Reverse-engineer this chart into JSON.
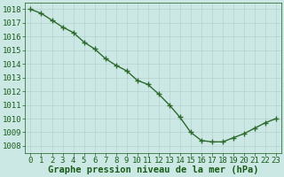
{
  "x": [
    0,
    1,
    2,
    3,
    4,
    5,
    6,
    7,
    8,
    9,
    10,
    11,
    12,
    13,
    14,
    15,
    16,
    17,
    18,
    19,
    20,
    21,
    22,
    23
  ],
  "y": [
    1018.0,
    1017.7,
    1017.2,
    1016.7,
    1016.3,
    1015.6,
    1015.1,
    1014.4,
    1013.9,
    1013.5,
    1012.8,
    1012.5,
    1011.8,
    1011.0,
    1010.1,
    1009.0,
    1008.4,
    1008.3,
    1008.3,
    1008.6,
    1008.9,
    1009.3,
    1009.7,
    1010.0
  ],
  "line_color": "#2d6a2d",
  "marker_color": "#2d6a2d",
  "bg_color": "#cce8e4",
  "grid_color": "#b0cccc",
  "xlabel": "Graphe pression niveau de la mer (hPa)",
  "xlabel_color": "#1a5c1a",
  "tick_color": "#1a5c1a",
  "ylim": [
    1007.5,
    1018.5
  ],
  "xlim": [
    -0.5,
    23.5
  ],
  "yticks": [
    1008,
    1009,
    1010,
    1011,
    1012,
    1013,
    1014,
    1015,
    1016,
    1017,
    1018
  ],
  "xticks": [
    0,
    1,
    2,
    3,
    4,
    5,
    6,
    7,
    8,
    9,
    10,
    11,
    12,
    13,
    14,
    15,
    16,
    17,
    18,
    19,
    20,
    21,
    22,
    23
  ],
  "xtick_labels": [
    "0",
    "1",
    "2",
    "3",
    "4",
    "5",
    "6",
    "7",
    "8",
    "9",
    "10",
    "11",
    "12",
    "13",
    "14",
    "15",
    "16",
    "17",
    "18",
    "19",
    "20",
    "21",
    "22",
    "23"
  ],
  "marker_size": 2.5,
  "linewidth": 1.0,
  "font_size": 6.5,
  "xlabel_fontsize": 7.5,
  "figwidth": 3.2,
  "figheight": 2.0,
  "dpi": 100
}
